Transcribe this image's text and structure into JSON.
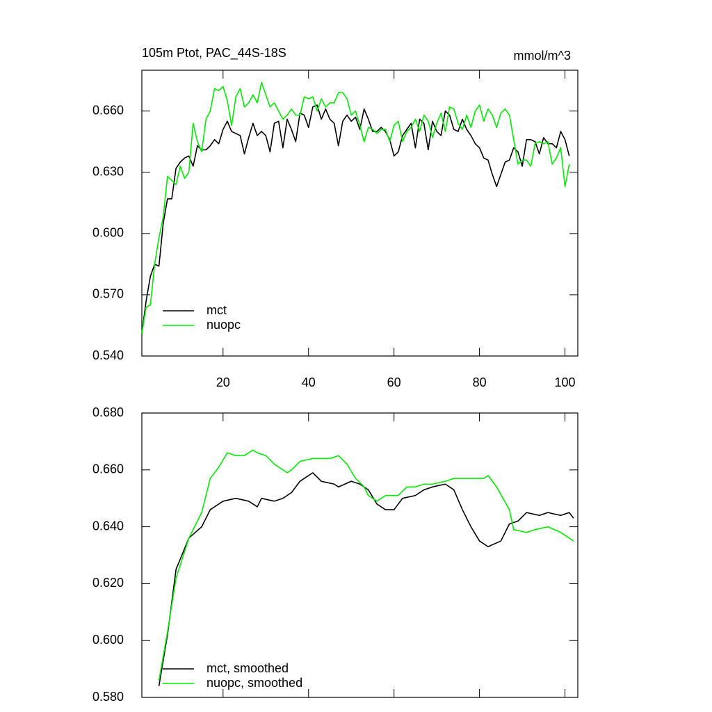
{
  "chart_data": [
    {
      "type": "line",
      "title": "105m Ptot, PAC_44S-18S",
      "units": "mmol/m^3",
      "x": [
        1,
        2,
        3,
        4,
        5,
        6,
        7,
        8,
        9,
        10,
        11,
        12,
        13,
        14,
        15,
        16,
        17,
        18,
        19,
        20,
        21,
        22,
        23,
        24,
        25,
        26,
        27,
        28,
        29,
        30,
        31,
        32,
        33,
        34,
        35,
        36,
        37,
        38,
        39,
        40,
        41,
        42,
        43,
        44,
        45,
        46,
        47,
        48,
        49,
        50,
        51,
        52,
        53,
        54,
        55,
        56,
        57,
        58,
        59,
        60,
        61,
        62,
        63,
        64,
        65,
        66,
        67,
        68,
        69,
        70,
        71,
        72,
        73,
        74,
        75,
        76,
        77,
        78,
        79,
        80,
        81,
        82,
        83,
        84,
        85,
        86,
        87,
        88,
        89,
        90,
        91,
        92,
        93,
        94,
        95,
        96,
        97,
        98,
        99,
        100,
        101
      ],
      "series": [
        {
          "name": "mct",
          "color": "#000000",
          "values": [
            0.551,
            0.567,
            0.579,
            0.585,
            0.584,
            0.605,
            0.617,
            0.617,
            0.632,
            0.635,
            0.637,
            0.638,
            0.633,
            0.643,
            0.641,
            0.641,
            0.643,
            0.646,
            0.644,
            0.651,
            0.655,
            0.65,
            0.649,
            0.648,
            0.639,
            0.647,
            0.654,
            0.648,
            0.65,
            0.648,
            0.64,
            0.654,
            0.655,
            0.642,
            0.656,
            0.651,
            0.645,
            0.659,
            0.658,
            0.652,
            0.662,
            0.663,
            0.656,
            0.661,
            0.656,
            0.654,
            0.643,
            0.655,
            0.658,
            0.655,
            0.657,
            0.651,
            0.661,
            0.656,
            0.65,
            0.65,
            0.652,
            0.65,
            0.646,
            0.638,
            0.64,
            0.648,
            0.651,
            0.654,
            0.642,
            0.656,
            0.654,
            0.641,
            0.655,
            0.65,
            0.648,
            0.66,
            0.658,
            0.651,
            0.65,
            0.656,
            0.651,
            0.648,
            0.644,
            0.642,
            0.637,
            0.636,
            0.629,
            0.623,
            0.629,
            0.635,
            0.636,
            0.642,
            0.64,
            0.633,
            0.646,
            0.646,
            0.645,
            0.639,
            0.647,
            0.644,
            0.644,
            0.642,
            0.65,
            0.646,
            0.638
          ]
        },
        {
          "name": "nuopc",
          "color": "#00ee00",
          "values": [
            0.551,
            0.564,
            0.565,
            0.585,
            0.598,
            0.608,
            0.628,
            0.626,
            0.624,
            0.633,
            0.627,
            0.63,
            0.654,
            0.645,
            0.64,
            0.656,
            0.66,
            0.671,
            0.67,
            0.672,
            0.665,
            0.653,
            0.667,
            0.671,
            0.662,
            0.664,
            0.668,
            0.664,
            0.674,
            0.668,
            0.662,
            0.664,
            0.66,
            0.656,
            0.658,
            0.661,
            0.658,
            0.658,
            0.667,
            0.666,
            0.667,
            0.66,
            0.666,
            0.662,
            0.664,
            0.664,
            0.669,
            0.669,
            0.666,
            0.658,
            0.66,
            0.653,
            0.645,
            0.652,
            0.651,
            0.649,
            0.651,
            0.651,
            0.645,
            0.653,
            0.655,
            0.645,
            0.65,
            0.652,
            0.656,
            0.65,
            0.658,
            0.655,
            0.647,
            0.654,
            0.659,
            0.65,
            0.662,
            0.661,
            0.654,
            0.651,
            0.658,
            0.652,
            0.66,
            0.663,
            0.655,
            0.661,
            0.658,
            0.652,
            0.659,
            0.661,
            0.658,
            0.646,
            0.634,
            0.636,
            0.636,
            0.633,
            0.644,
            0.645,
            0.644,
            0.645,
            0.634,
            0.637,
            0.642,
            0.623,
            0.634
          ]
        }
      ],
      "xlim": [
        1,
        103
      ],
      "xticks": [
        20,
        40,
        60,
        80,
        100
      ],
      "ylim": [
        0.54,
        0.68
      ],
      "yticks": [
        {
          "value": 0.54,
          "label": "0.540"
        },
        {
          "value": 0.57,
          "label": "0.570"
        },
        {
          "value": 0.6,
          "label": "0.600"
        },
        {
          "value": 0.63,
          "label": "0.630"
        },
        {
          "value": 0.66,
          "label": "0.660"
        }
      ],
      "legend": "lower left"
    },
    {
      "type": "line",
      "series": [
        {
          "name": "mct, smoothed",
          "color": "#000000",
          "x": [
            5,
            7,
            9,
            12,
            15,
            17,
            20,
            23,
            26,
            28,
            29,
            32,
            34,
            36,
            38,
            39,
            41,
            43,
            46,
            47,
            50,
            52,
            54,
            56,
            58,
            60,
            62,
            65,
            67,
            69,
            72,
            74,
            76,
            78,
            80,
            82,
            85,
            87,
            89,
            91,
            94,
            96,
            99,
            101,
            102
          ],
          "values": [
            0.584,
            0.602,
            0.625,
            0.636,
            0.64,
            0.646,
            0.649,
            0.65,
            0.649,
            0.647,
            0.65,
            0.649,
            0.65,
            0.652,
            0.656,
            0.657,
            0.659,
            0.656,
            0.655,
            0.654,
            0.656,
            0.655,
            0.653,
            0.648,
            0.646,
            0.646,
            0.65,
            0.651,
            0.653,
            0.654,
            0.655,
            0.653,
            0.646,
            0.64,
            0.635,
            0.633,
            0.635,
            0.641,
            0.642,
            0.645,
            0.644,
            0.645,
            0.644,
            0.645,
            0.643
          ]
        },
        {
          "name": "nuopc, smoothed",
          "color": "#00ee00",
          "x": [
            5,
            7,
            9,
            12,
            15,
            17,
            19,
            21,
            23,
            25,
            27,
            28,
            30,
            32,
            35,
            36,
            38,
            41,
            43,
            45,
            47,
            49,
            51,
            53,
            54,
            56,
            58,
            61,
            63,
            65,
            67,
            69,
            72,
            74,
            76,
            78,
            81,
            82,
            84,
            87,
            88,
            91,
            93,
            96,
            99,
            102
          ],
          "values": [
            0.586,
            0.603,
            0.622,
            0.636,
            0.645,
            0.657,
            0.661,
            0.666,
            0.665,
            0.665,
            0.667,
            0.666,
            0.665,
            0.662,
            0.659,
            0.66,
            0.663,
            0.664,
            0.664,
            0.664,
            0.665,
            0.662,
            0.657,
            0.654,
            0.651,
            0.649,
            0.651,
            0.651,
            0.654,
            0.654,
            0.655,
            0.655,
            0.656,
            0.657,
            0.657,
            0.657,
            0.657,
            0.658,
            0.654,
            0.646,
            0.639,
            0.638,
            0.639,
            0.64,
            0.638,
            0.635
          ]
        }
      ],
      "xlim": [
        1,
        103
      ],
      "xticks": [
        20,
        40,
        60,
        80,
        100
      ],
      "xtick_labels": false,
      "ylim": [
        0.58,
        0.68
      ],
      "yticks": [
        {
          "value": 0.58,
          "label": "0.580"
        },
        {
          "value": 0.6,
          "label": "0.600"
        },
        {
          "value": 0.62,
          "label": "0.620"
        },
        {
          "value": 0.64,
          "label": "0.640"
        },
        {
          "value": 0.66,
          "label": "0.660"
        },
        {
          "value": 0.68,
          "label": "0.680"
        }
      ],
      "legend": "lower left"
    }
  ]
}
